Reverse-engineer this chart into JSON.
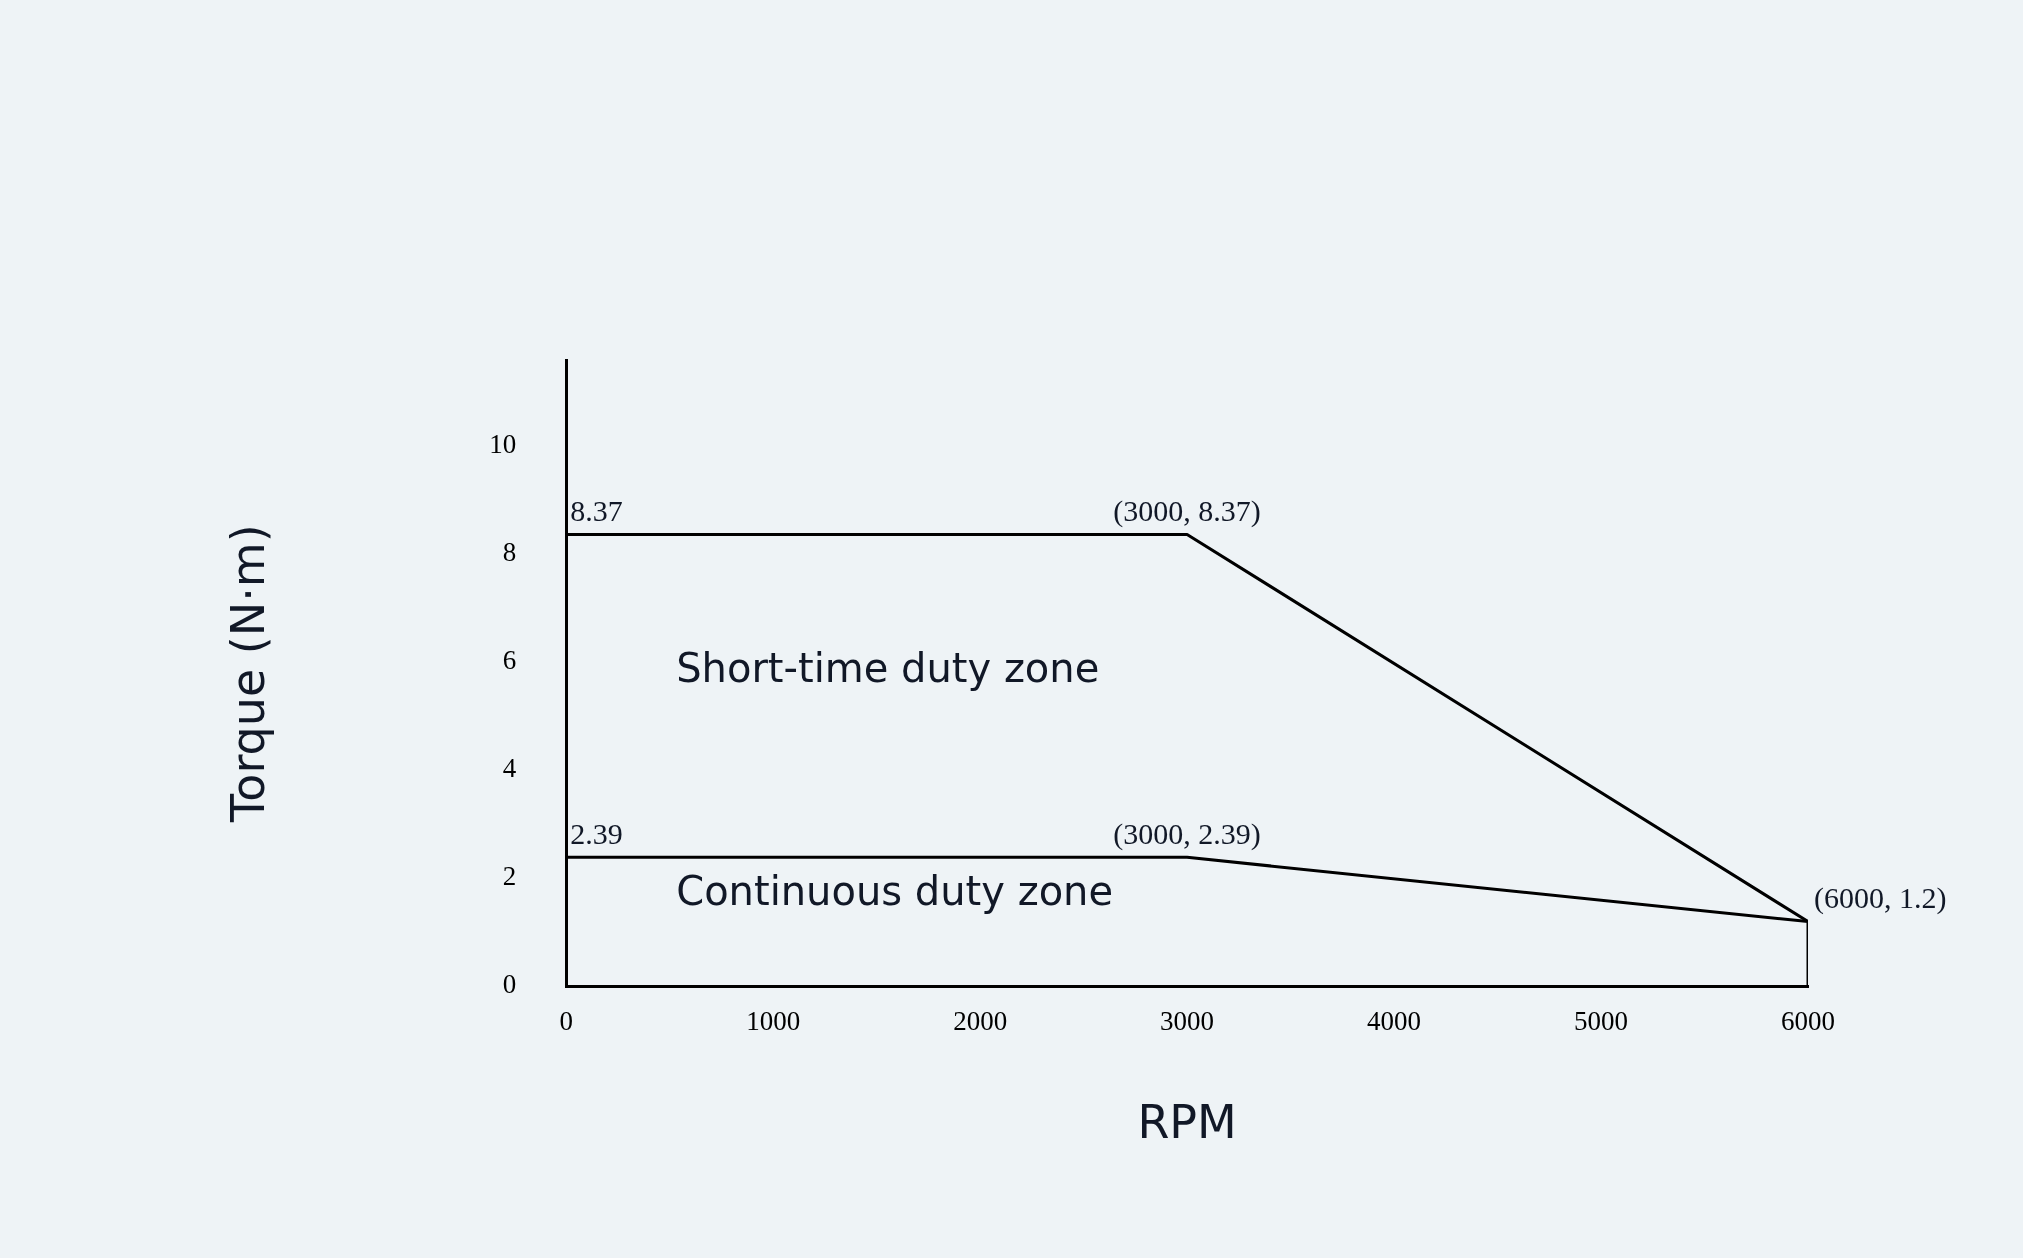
{
  "chart_data": {
    "type": "line",
    "xlabel": "RPM",
    "ylabel": "Torque (N·m)",
    "series": [
      {
        "color": "#000000",
        "x": [
          0,
          3000,
          6000
        ],
        "values": [
          8.37,
          8.37,
          1.2
        ]
      },
      {
        "color": "#000000",
        "x": [
          0,
          3000,
          6000,
          6000
        ],
        "values": [
          2.39,
          2.39,
          1.2,
          0
        ]
      }
    ],
    "xlim": [
      0,
      6000
    ],
    "xticks": [
      0,
      1000,
      2000,
      3000,
      4000,
      5000,
      6000
    ],
    "ylim": [
      0,
      11.6
    ],
    "yticks": [
      0,
      2,
      4,
      6,
      8,
      10
    ],
    "grid": false,
    "legend": false,
    "marker": "none",
    "line_style": "solid",
    "annotations": [
      {
        "text": "8.37",
        "x": 0,
        "y": 8.37
      },
      {
        "text": "(3000, 8.37)",
        "x": 3000,
        "y": 8.37
      },
      {
        "text": "2.39",
        "x": 0,
        "y": 2.39
      },
      {
        "text": "(3000, 2.39)",
        "x": 3000,
        "y": 2.39
      },
      {
        "text": "(6000, 1.2)",
        "x": 6000,
        "y": 1.2
      },
      "Short-time duty zone",
      "Continuous duty zone"
    ]
  }
}
